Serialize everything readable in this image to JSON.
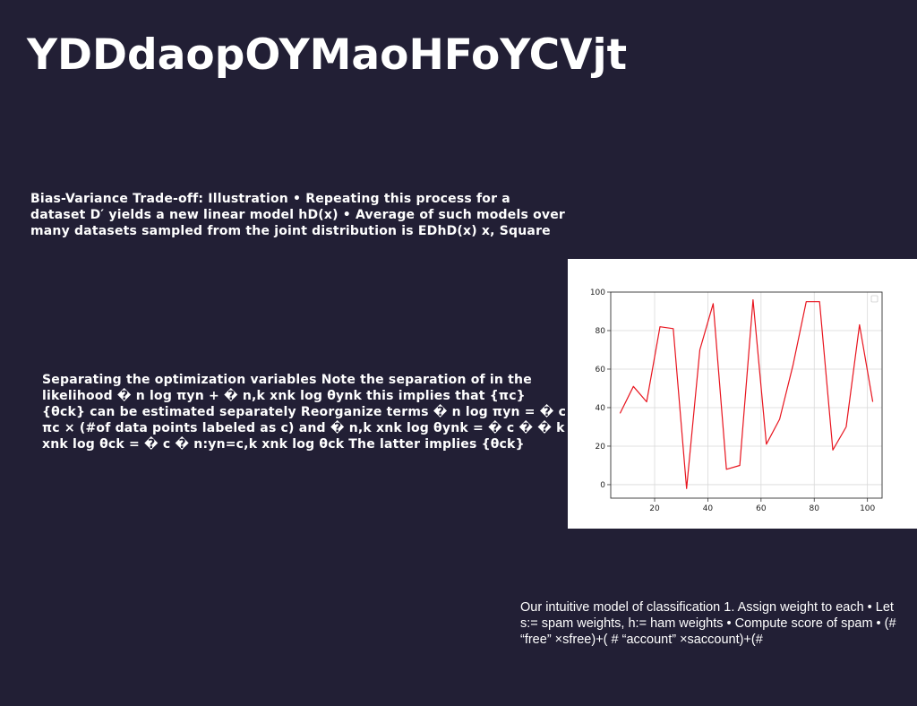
{
  "title": "YDDdaopOYMaoHFoYCVjt",
  "paragraphs": {
    "p1": "Bias-Variance Trade-off: Illustration • Repeating this process for a dataset D′ yields a new linear model hD(x) • Average of such models over many datasets sampled from the joint distribution is EDhD(x) x, Square",
    "p2": "Separating the optimization variables Note the separation of in the likelihood � n log πyn + � n,k xnk log θynk this implies that {πc} {θck} can be estimated separately Reorganize terms � n log πyn = � c πc × (#of data points labeled as c) and � n,k xnk log θynk = � c � � k xnk log θck = � c � n:yn=c,k xnk log θck The latter implies {θck}",
    "p3": "Our intuitive model of classification 1. Assign weight to each • Let s:= spam weights, h:= ham weights • Compute score of spam • (# “free” ×sfree)+( # “account” ×saccount)+(#"
  },
  "chart_data": {
    "type": "line",
    "x": [
      7,
      12,
      17,
      22,
      27,
      32,
      37,
      42,
      47,
      52,
      57,
      62,
      67,
      72,
      77,
      82,
      87,
      92,
      97,
      102
    ],
    "series": [
      {
        "values": [
          37,
          51,
          43,
          82,
          81,
          -2,
          70,
          94,
          8,
          10,
          96,
          21,
          34,
          62,
          95,
          95,
          18,
          30,
          83,
          43
        ],
        "color": "#e8141e"
      }
    ],
    "title": "",
    "xlabel": "",
    "ylabel": "",
    "xlim": [
      3.5,
      105.5
    ],
    "ylim": [
      -7,
      100
    ],
    "xticks": [
      "20",
      "40",
      "60",
      "80",
      "100"
    ],
    "yticks": [
      "0",
      "20",
      "40",
      "60",
      "80",
      "100"
    ],
    "grid": true,
    "legend": "top-right"
  }
}
